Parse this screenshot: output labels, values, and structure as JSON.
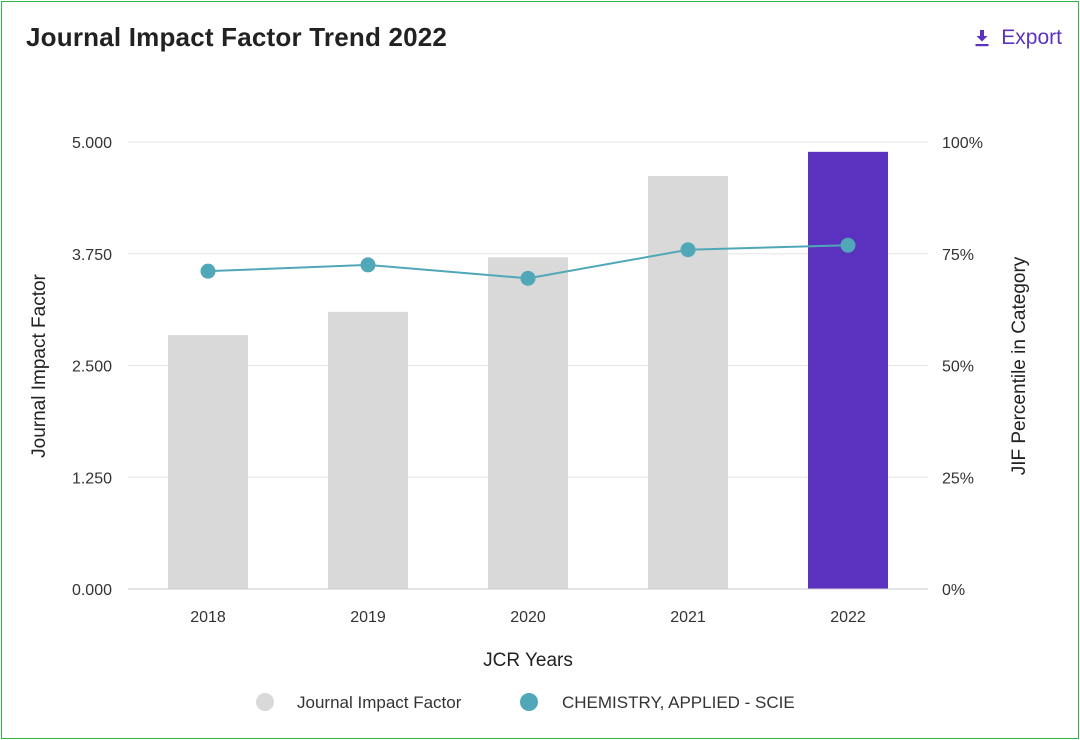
{
  "header": {
    "title": "Journal Impact Factor Trend 2022",
    "export_label": "Export",
    "export_icon": "download-icon",
    "accent": "#5b33c2"
  },
  "chart_data": {
    "type": "bar",
    "title": "Journal Impact Factor Trend 2022",
    "categories": [
      "2018",
      "2019",
      "2020",
      "2021",
      "2022"
    ],
    "xlabel": "JCR Years",
    "ylabel": "Journal Impact Factor",
    "y2label": "JIF Percentile in Category",
    "ylim": [
      0,
      5
    ],
    "y2lim": [
      0,
      100
    ],
    "yticks": [
      "0.000",
      "1.250",
      "2.500",
      "3.750",
      "5.000"
    ],
    "y2ticks": [
      "0%",
      "25%",
      "50%",
      "75%",
      "100%"
    ],
    "grid": true,
    "legend": "bottom",
    "series": [
      {
        "name": "Journal Impact Factor",
        "type": "bar",
        "axis": "left",
        "values": [
          2.84,
          3.1,
          3.71,
          4.62,
          4.89
        ],
        "color": "#d9d9d9",
        "highlight_color": "#5b31c0",
        "highlight_index": 4
      },
      {
        "name": "CHEMISTRY, APPLIED - SCIE",
        "type": "line",
        "axis": "right",
        "values": [
          71.1,
          72.5,
          69.5,
          75.9,
          76.9
        ],
        "color": "#50a7b8"
      }
    ]
  }
}
